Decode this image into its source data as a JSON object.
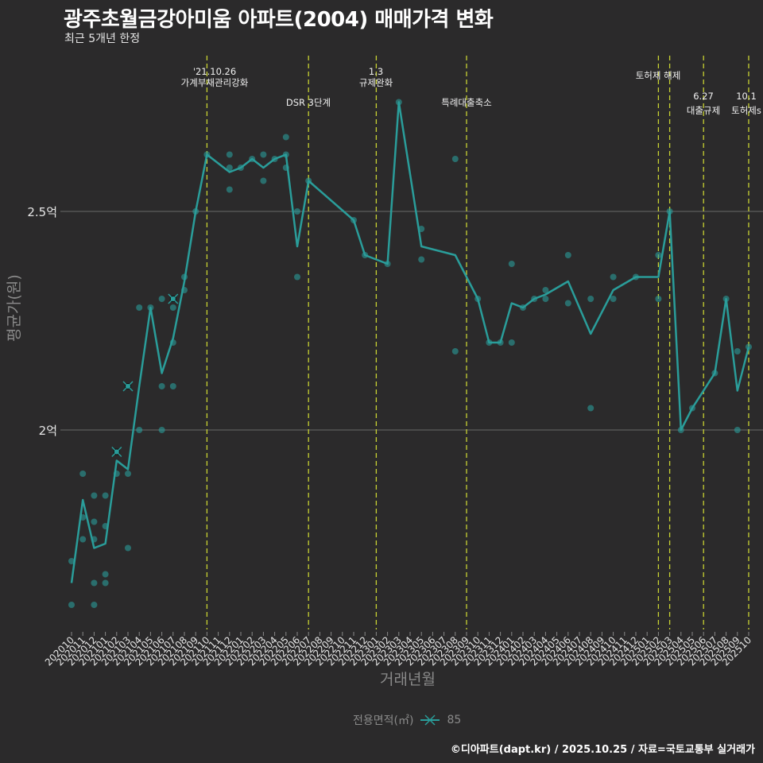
{
  "header": {
    "title": "광주초월금강아미움 아파트(2004) 매매가격 변화",
    "subtitle": "최근 5개년 한정"
  },
  "axes": {
    "ylabel": "평균가(원)",
    "xlabel": "거래년월",
    "yticks": [
      {
        "label": "2억",
        "value": 2.0
      },
      {
        "label": "2.5억",
        "value": 2.5
      }
    ]
  },
  "legend": {
    "title": "전용면적(㎡)",
    "item": "85"
  },
  "footer": "©디아파트(dapt.kr) / 2025.10.25 / 자료=국토교통부 실거래가",
  "colors": {
    "background": "#2b2a2b",
    "series": "#2a9d9a",
    "vline": "#c8d232",
    "grid": "#6a6a6a",
    "text": "#ffffff"
  },
  "chart_data": {
    "type": "line",
    "title": "광주초월금강아미움 아파트(2004) 매매가격 변화",
    "subtitle": "최근 5개년 한정",
    "xlabel": "거래년월",
    "ylabel": "평균가(원)",
    "ylim_eok": [
      1.55,
      2.85
    ],
    "grid": true,
    "legend_position": "bottom",
    "categories": [
      "202010",
      "202011",
      "202012",
      "202101",
      "202102",
      "202103",
      "202104",
      "202105",
      "202106",
      "202107",
      "202108",
      "202109",
      "202110",
      "202111",
      "202112",
      "202201",
      "202202",
      "202203",
      "202204",
      "202205",
      "202206",
      "202207",
      "202208",
      "202209",
      "202210",
      "202211",
      "202212",
      "202301",
      "202302",
      "202303",
      "202304",
      "202305",
      "202306",
      "202307",
      "202308",
      "202309",
      "202310",
      "202311",
      "202312",
      "202401",
      "202402",
      "202403",
      "202404",
      "202405",
      "202406",
      "202407",
      "202408",
      "202409",
      "202410",
      "202411",
      "202412",
      "202501",
      "202502",
      "202503",
      "202504",
      "202505",
      "202506",
      "202507",
      "202508",
      "202509",
      "202510"
    ],
    "series": [
      {
        "name": "85",
        "unit": "억",
        "line_points": [
          [
            "202010",
            1.65
          ],
          [
            "202011",
            1.84
          ],
          [
            "202012",
            1.73
          ],
          [
            "202101",
            1.74
          ],
          [
            "202102",
            1.93
          ],
          [
            "202103",
            1.91
          ],
          [
            "202104",
            2.1
          ],
          [
            "202105",
            2.28
          ],
          [
            "202106",
            2.13
          ],
          [
            "202107",
            2.21
          ],
          [
            "202108",
            2.34
          ],
          [
            "202109",
            2.5
          ],
          [
            "202110",
            2.63
          ],
          [
            "202112",
            2.59
          ],
          [
            "202201",
            2.6
          ],
          [
            "202202",
            2.62
          ],
          [
            "202203",
            2.6
          ],
          [
            "202204",
            2.62
          ],
          [
            "202205",
            2.63
          ],
          [
            "202206",
            2.42
          ],
          [
            "202207",
            2.57
          ],
          [
            "202211",
            2.48
          ],
          [
            "202212",
            2.4
          ],
          [
            "202302",
            2.38
          ],
          [
            "202303",
            2.75
          ],
          [
            "202305",
            2.42
          ],
          [
            "202308",
            2.4
          ],
          [
            "202310",
            2.3
          ],
          [
            "202311",
            2.2
          ],
          [
            "202312",
            2.2
          ],
          [
            "202401",
            2.29
          ],
          [
            "202402",
            2.28
          ],
          [
            "202403",
            2.3
          ],
          [
            "202404",
            2.31
          ],
          [
            "202406",
            2.34
          ],
          [
            "202408",
            2.22
          ],
          [
            "202410",
            2.32
          ],
          [
            "202412",
            2.35
          ],
          [
            "202502",
            2.35
          ],
          [
            "202503",
            2.5
          ],
          [
            "202504",
            2.0
          ],
          [
            "202505",
            2.05
          ],
          [
            "202507",
            2.13
          ],
          [
            "202508",
            2.3
          ],
          [
            "202509",
            2.09
          ],
          [
            "202510",
            2.19
          ]
        ],
        "transactions": [
          [
            "202010",
            1.7
          ],
          [
            "202010",
            1.6
          ],
          [
            "202011",
            1.9
          ],
          [
            "202011",
            1.75
          ],
          [
            "202011",
            1.8
          ],
          [
            "202012",
            1.85
          ],
          [
            "202012",
            1.79
          ],
          [
            "202012",
            1.75
          ],
          [
            "202012",
            1.65
          ],
          [
            "202012",
            1.6
          ],
          [
            "202101",
            1.85
          ],
          [
            "202101",
            1.78
          ],
          [
            "202101",
            1.67
          ],
          [
            "202101",
            1.65
          ],
          [
            "202102",
            1.95
          ],
          [
            "202102",
            1.9
          ],
          [
            "202103",
            2.1
          ],
          [
            "202103",
            1.9
          ],
          [
            "202103",
            1.73
          ],
          [
            "202104",
            2.28
          ],
          [
            "202104",
            2.0
          ],
          [
            "202105",
            2.28
          ],
          [
            "202106",
            2.3
          ],
          [
            "202106",
            2.1
          ],
          [
            "202106",
            2.0
          ],
          [
            "202107",
            2.3
          ],
          [
            "202107",
            2.28
          ],
          [
            "202107",
            2.2
          ],
          [
            "202107",
            2.1
          ],
          [
            "202108",
            2.35
          ],
          [
            "202108",
            2.32
          ],
          [
            "202109",
            2.5
          ],
          [
            "202110",
            2.63
          ],
          [
            "202112",
            2.63
          ],
          [
            "202112",
            2.6
          ],
          [
            "202112",
            2.55
          ],
          [
            "202201",
            2.6
          ],
          [
            "202202",
            2.62
          ],
          [
            "202203",
            2.63
          ],
          [
            "202203",
            2.57
          ],
          [
            "202204",
            2.62
          ],
          [
            "202205",
            2.67
          ],
          [
            "202205",
            2.63
          ],
          [
            "202205",
            2.6
          ],
          [
            "202206",
            2.5
          ],
          [
            "202206",
            2.35
          ],
          [
            "202207",
            2.57
          ],
          [
            "202211",
            2.48
          ],
          [
            "202212",
            2.4
          ],
          [
            "202302",
            2.38
          ],
          [
            "202303",
            2.75
          ],
          [
            "202305",
            2.46
          ],
          [
            "202305",
            2.39
          ],
          [
            "202308",
            2.62
          ],
          [
            "202308",
            2.18
          ],
          [
            "202310",
            2.3
          ],
          [
            "202311",
            2.2
          ],
          [
            "202312",
            2.2
          ],
          [
            "202401",
            2.38
          ],
          [
            "202401",
            2.2
          ],
          [
            "202402",
            2.28
          ],
          [
            "202403",
            2.3
          ],
          [
            "202404",
            2.32
          ],
          [
            "202404",
            2.3
          ],
          [
            "202406",
            2.4
          ],
          [
            "202406",
            2.29
          ],
          [
            "202408",
            2.3
          ],
          [
            "202408",
            2.05
          ],
          [
            "202410",
            2.35
          ],
          [
            "202410",
            2.3
          ],
          [
            "202412",
            2.35
          ],
          [
            "202502",
            2.4
          ],
          [
            "202502",
            2.3
          ],
          [
            "202503",
            2.5
          ],
          [
            "202504",
            2.0
          ],
          [
            "202505",
            2.05
          ],
          [
            "202507",
            2.13
          ],
          [
            "202508",
            2.3
          ],
          [
            "202509",
            2.18
          ],
          [
            "202509",
            2.0
          ],
          [
            "202510",
            2.19
          ]
        ],
        "cross_markers": [
          [
            "202102",
            1.95
          ],
          [
            "202103",
            2.1
          ],
          [
            "202107",
            2.3
          ]
        ]
      }
    ],
    "annotations": [
      {
        "month": "202110",
        "line1": "'21.10.26",
        "line2": "가계부채관리강화"
      },
      {
        "month": "202207",
        "line1": "",
        "line2": "DSR 3단계"
      },
      {
        "month": "202301",
        "line1": "1.3",
        "line2": "규제완화"
      },
      {
        "month": "202309",
        "line1": "",
        "line2": "특례대출축소"
      },
      {
        "month": "202502",
        "line1": "토허제 해제",
        "line2": ""
      },
      {
        "month": "202503",
        "line1": "",
        "line2": ""
      },
      {
        "month": "202506",
        "line1": "6.27",
        "line2": "대출규제"
      },
      {
        "month": "202510",
        "line1": "10.1",
        "line2": "토허제s"
      }
    ]
  }
}
